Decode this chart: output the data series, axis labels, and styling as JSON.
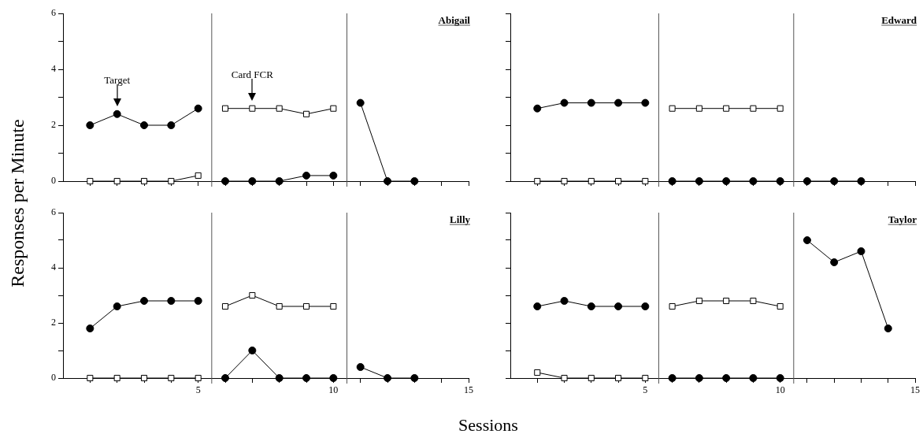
{
  "chart_data": [
    {
      "type": "line",
      "title": "Abigail",
      "ylabel": "Responses per Minute",
      "xlim": [
        0,
        15
      ],
      "ylim": [
        0,
        6
      ],
      "xticks": [
        {
          "value": 1,
          "label": null
        },
        {
          "value": 2,
          "label": null
        },
        {
          "value": 3,
          "label": null
        },
        {
          "value": 4,
          "label": null
        },
        {
          "value": 5,
          "label": null
        },
        {
          "value": 6,
          "label": null
        },
        {
          "value": 7,
          "label": null
        },
        {
          "value": 8,
          "label": null
        },
        {
          "value": 9,
          "label": null
        },
        {
          "value": 10,
          "label": null
        },
        {
          "value": 11,
          "label": null
        },
        {
          "value": 12,
          "label": null
        },
        {
          "value": 13,
          "label": null
        },
        {
          "value": 14,
          "label": null
        },
        {
          "value": 15,
          "label": null
        }
      ],
      "yticks": [
        0,
        {
          "value": 1,
          "label": null
        },
        2,
        {
          "value": 3,
          "label": null
        },
        4,
        {
          "value": 5,
          "label": null
        },
        6
      ],
      "tick_labels": "y",
      "ref_lines": [
        {
          "axis": "x",
          "value": 5.5,
          "color": "#555555"
        },
        {
          "axis": "x",
          "value": 10.5,
          "color": "#555555"
        }
      ],
      "annotations": [
        {
          "text": "Target",
          "x": 2,
          "y": 2.4
        },
        {
          "text": "Card FCR",
          "x": 7,
          "y": 2.6
        }
      ],
      "series": [
        {
          "color": "#000000",
          "marker": "circle",
          "x": [
            1,
            2,
            3,
            4,
            5
          ],
          "values": [
            2,
            2.4,
            2,
            2,
            2.6
          ]
        },
        {
          "color": "#000000",
          "marker": "square",
          "x": [
            1,
            2,
            3,
            4,
            5
          ],
          "values": [
            0,
            0,
            0,
            0,
            0.2
          ]
        },
        {
          "color": "#000000",
          "marker": "square",
          "x": [
            6,
            7,
            8,
            9,
            10
          ],
          "values": [
            2.6,
            2.6,
            2.6,
            2.4,
            2.6
          ]
        },
        {
          "color": "#000000",
          "marker": "circle",
          "x": [
            6,
            7,
            8,
            9,
            10
          ],
          "values": [
            0,
            0,
            0,
            0.2,
            0.2
          ]
        },
        {
          "color": "#000000",
          "marker": "circle",
          "x": [
            11,
            12,
            13
          ],
          "values": [
            2.8,
            0,
            0
          ]
        }
      ]
    },
    {
      "type": "line",
      "title": "Edward",
      "xlim": [
        0,
        15
      ],
      "ylim": [
        0,
        6
      ],
      "xticks": [
        {
          "value": 1,
          "label": null
        },
        {
          "value": 2,
          "label": null
        },
        {
          "value": 3,
          "label": null
        },
        {
          "value": 4,
          "label": null
        },
        {
          "value": 5,
          "label": null
        },
        {
          "value": 6,
          "label": null
        },
        {
          "value": 7,
          "label": null
        },
        {
          "value": 8,
          "label": null
        },
        {
          "value": 9,
          "label": null
        },
        {
          "value": 10,
          "label": null
        },
        {
          "value": 11,
          "label": null
        },
        {
          "value": 12,
          "label": null
        },
        {
          "value": 13,
          "label": null
        },
        {
          "value": 14,
          "label": null
        },
        {
          "value": 15,
          "label": null
        }
      ],
      "yticks": [
        0,
        {
          "value": 1,
          "label": null
        },
        2,
        {
          "value": 3,
          "label": null
        },
        4,
        {
          "value": 5,
          "label": null
        },
        6
      ],
      "tick_labels": false,
      "ref_lines": [
        {
          "axis": "x",
          "value": 5.5,
          "color": "#555555"
        },
        {
          "axis": "x",
          "value": 10.5,
          "color": "#555555"
        }
      ],
      "series": [
        {
          "color": "#000000",
          "marker": "circle",
          "x": [
            1,
            2,
            3,
            4,
            5
          ],
          "values": [
            2.6,
            2.8,
            2.8,
            2.8,
            2.8
          ]
        },
        {
          "color": "#000000",
          "marker": "square",
          "x": [
            1,
            2,
            3,
            4,
            5
          ],
          "values": [
            0,
            0,
            0,
            0,
            0
          ]
        },
        {
          "color": "#000000",
          "marker": "square",
          "x": [
            6,
            7,
            8,
            9,
            10
          ],
          "values": [
            2.6,
            2.6,
            2.6,
            2.6,
            2.6
          ]
        },
        {
          "color": "#000000",
          "marker": "circle",
          "x": [
            6,
            7,
            8,
            9,
            10
          ],
          "values": [
            0,
            0,
            0,
            0,
            0
          ]
        },
        {
          "color": "#000000",
          "marker": "circle",
          "x": [
            11,
            12,
            13
          ],
          "values": [
            0,
            0,
            0
          ]
        }
      ]
    },
    {
      "type": "line",
      "title": "Lilly",
      "xlabel": "Sessions",
      "xlim": [
        0,
        15
      ],
      "ylim": [
        0,
        6
      ],
      "xticks": [
        {
          "value": 1,
          "label": null
        },
        {
          "value": 2,
          "label": null
        },
        {
          "value": 3,
          "label": null
        },
        {
          "value": 4,
          "label": null
        },
        5,
        {
          "value": 6,
          "label": null
        },
        {
          "value": 7,
          "label": null
        },
        {
          "value": 8,
          "label": null
        },
        {
          "value": 9,
          "label": null
        },
        10,
        {
          "value": 11,
          "label": null
        },
        {
          "value": 12,
          "label": null
        },
        {
          "value": 13,
          "label": null
        },
        {
          "value": 14,
          "label": null
        },
        15
      ],
      "yticks": [
        0,
        {
          "value": 1,
          "label": null
        },
        2,
        {
          "value": 3,
          "label": null
        },
        4,
        {
          "value": 5,
          "label": null
        },
        6
      ],
      "ref_lines": [
        {
          "axis": "x",
          "value": 5.5,
          "color": "#555555"
        },
        {
          "axis": "x",
          "value": 10.5,
          "color": "#555555"
        }
      ],
      "series": [
        {
          "color": "#000000",
          "marker": "circle",
          "x": [
            1,
            2,
            3,
            4,
            5
          ],
          "values": [
            1.8,
            2.6,
            2.8,
            2.8,
            2.8
          ]
        },
        {
          "color": "#000000",
          "marker": "square",
          "x": [
            1,
            2,
            3,
            4,
            5
          ],
          "values": [
            0,
            0,
            0,
            0,
            0
          ]
        },
        {
          "color": "#000000",
          "marker": "square",
          "x": [
            6,
            7,
            8,
            9,
            10
          ],
          "values": [
            2.6,
            3,
            2.6,
            2.6,
            2.6
          ]
        },
        {
          "color": "#000000",
          "marker": "circle",
          "x": [
            6,
            7,
            8,
            9,
            10
          ],
          "values": [
            0,
            1,
            0,
            0,
            0
          ]
        },
        {
          "color": "#000000",
          "marker": "circle",
          "x": [
            11,
            12,
            13
          ],
          "values": [
            0.4,
            0,
            0
          ]
        }
      ]
    },
    {
      "type": "line",
      "title": "Taylor",
      "xlim": [
        0,
        15
      ],
      "ylim": [
        0,
        6
      ],
      "xticks": [
        {
          "value": 1,
          "label": null
        },
        {
          "value": 2,
          "label": null
        },
        {
          "value": 3,
          "label": null
        },
        {
          "value": 4,
          "label": null
        },
        5,
        {
          "value": 6,
          "label": null
        },
        {
          "value": 7,
          "label": null
        },
        {
          "value": 8,
          "label": null
        },
        {
          "value": 9,
          "label": null
        },
        10,
        {
          "value": 11,
          "label": null
        },
        {
          "value": 12,
          "label": null
        },
        {
          "value": 13,
          "label": null
        },
        {
          "value": 14,
          "label": null
        },
        15
      ],
      "yticks": [
        0,
        {
          "value": 1,
          "label": null
        },
        2,
        {
          "value": 3,
          "label": null
        },
        4,
        {
          "value": 5,
          "label": null
        },
        6
      ],
      "tick_labels": "x",
      "ref_lines": [
        {
          "axis": "x",
          "value": 5.5,
          "color": "#555555"
        },
        {
          "axis": "x",
          "value": 10.5,
          "color": "#555555"
        }
      ],
      "series": [
        {
          "color": "#000000",
          "marker": "circle",
          "x": [
            1,
            2,
            3,
            4,
            5
          ],
          "values": [
            2.6,
            2.8,
            2.6,
            2.6,
            2.6
          ]
        },
        {
          "color": "#000000",
          "marker": "square",
          "x": [
            1,
            2,
            3,
            4,
            5
          ],
          "values": [
            0.2,
            0,
            0,
            0,
            0
          ]
        },
        {
          "color": "#000000",
          "marker": "square",
          "x": [
            6,
            7,
            8,
            9,
            10
          ],
          "values": [
            2.6,
            2.8,
            2.8,
            2.8,
            2.6
          ]
        },
        {
          "color": "#000000",
          "marker": "circle",
          "x": [
            6,
            7,
            8,
            9,
            10
          ],
          "values": [
            0,
            0,
            0,
            0,
            0
          ]
        },
        {
          "color": "#000000",
          "marker": "circle",
          "x": [
            11,
            12,
            13,
            14
          ],
          "values": [
            5,
            4.2,
            4.6,
            1.8
          ]
        }
      ]
    }
  ]
}
